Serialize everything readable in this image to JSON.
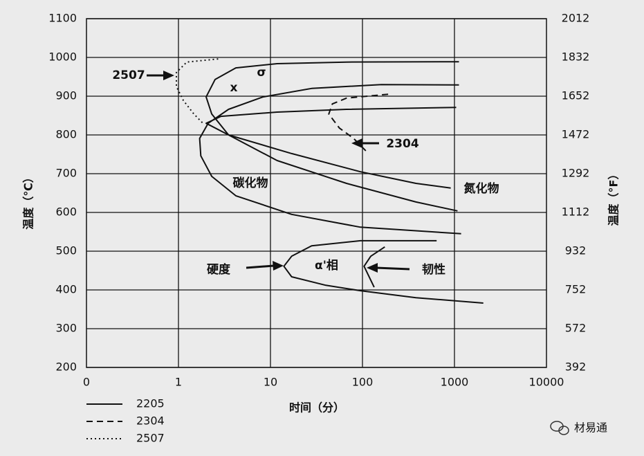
{
  "chart_data": {
    "type": "line",
    "x_label": "时间（分）",
    "y_label": "温度（℃）",
    "y2_label": "温度（°F）",
    "log_x": true,
    "grid": true,
    "legend": "bottom-left",
    "xlim": [
      0.1,
      10000
    ],
    "xticks": [
      {
        "value": 0.1,
        "label": "0"
      },
      1,
      10,
      100,
      1000,
      10000
    ],
    "ylim": [
      200,
      1100
    ],
    "yticks": [
      200,
      300,
      400,
      500,
      600,
      700,
      800,
      900,
      1000,
      1100
    ],
    "y2lim": [
      392,
      2012
    ],
    "y2ticks": [
      392,
      572,
      752,
      932,
      1112,
      1292,
      1472,
      1652,
      1832,
      2012
    ],
    "series": [
      {
        "name": "2205",
        "color": "#111111",
        "style": "solid",
        "x": [
          1120,
          67,
          11.8,
          4.2,
          2.5,
          2.0,
          2.3,
          3.5,
          11.8,
          67,
          381,
          1080,
          null,
          1120,
          160,
          28,
          8.3,
          3.5,
          2.1,
          1.7,
          1.75,
          2.3,
          4.2,
          17,
          95,
          1180,
          null,
          1045,
          67,
          11.8,
          2.9,
          2.0,
          3.5,
          17,
          95,
          381,
          910,
          null,
          640,
          95,
          28,
          17,
          14,
          17,
          40,
          95,
          381,
          2060,
          null,
          175,
          123,
          104,
          134
        ],
        "values": [
          989,
          988,
          984,
          973,
          943,
          898,
          854,
          800,
          734,
          675,
          627,
          604,
          null,
          929,
          930,
          920,
          898,
          866,
          830,
          791,
          746,
          693,
          643,
          595,
          562,
          545,
          null,
          871,
          866,
          859,
          848,
          830,
          800,
          752,
          705,
          675,
          663,
          null,
          527,
          527,
          514,
          487,
          461,
          434,
          412,
          398,
          380,
          366,
          null,
          511,
          487,
          461,
          407
        ]
      },
      {
        "name": "2304",
        "color": "#111111",
        "style": "dashed",
        "x": [
          190,
          67,
          47,
          43,
          56,
          80,
          113
        ],
        "values": [
          905,
          895,
          880,
          854,
          818,
          791,
          755
        ]
      },
      {
        "name": "2507",
        "color": "#111111",
        "style": "dotted",
        "x": [
          2.7,
          1.23,
          0.95,
          0.95,
          1.13,
          1.47,
          1.9
        ],
        "values": [
          996,
          988,
          961,
          925,
          889,
          854,
          827
        ]
      }
    ],
    "annotations": [
      "σ",
      "x",
      "碳化物",
      "氮化物",
      "α'相",
      "硬度",
      "韧性",
      "2507",
      "2304"
    ],
    "watermark": "材易通"
  }
}
